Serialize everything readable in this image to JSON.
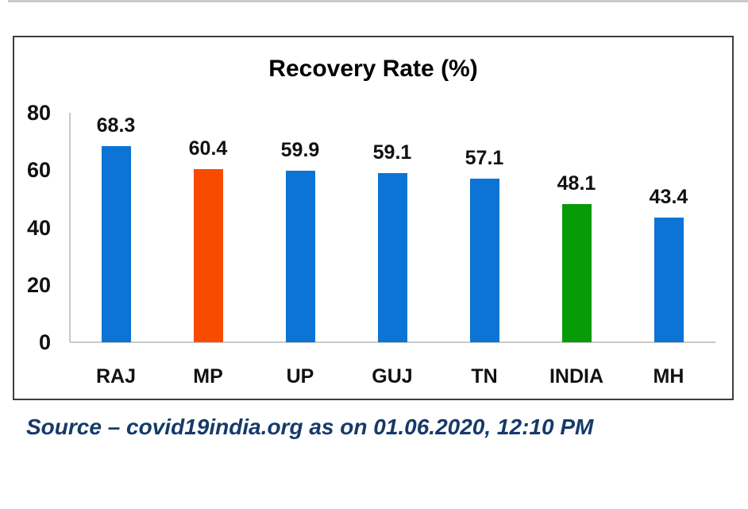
{
  "chart_data": {
    "type": "bar",
    "title": "Recovery Rate (%)",
    "categories": [
      "RAJ",
      "MP",
      "UP",
      "GUJ",
      "TN",
      "INDIA",
      "MH"
    ],
    "values": [
      68.3,
      60.4,
      59.9,
      59.1,
      57.1,
      48.1,
      43.4
    ],
    "bar_colors": [
      "#0b74d4",
      "#f84b00",
      "#0b74d4",
      "#0b74d4",
      "#0b74d4",
      "#089b08",
      "#0b74d4"
    ],
    "xlabel": "",
    "ylabel": "",
    "ylim": [
      0,
      80
    ],
    "yticks": [
      0,
      20,
      40,
      60,
      80
    ],
    "grid": false,
    "legend": false,
    "data_labels": [
      "68.3",
      "60.4",
      "59.9",
      "59.1",
      "57.1",
      "48.1",
      "43.4"
    ]
  },
  "source_note": "Source – covid19india.org as on 01.06.2020, 12:10 PM",
  "colors": {
    "bar_blue": "#0b74d4",
    "bar_orange": "#f84b00",
    "bar_green": "#089b08",
    "source_text": "#163a69",
    "box_border": "#3e3e3e",
    "axis_line": "#c9c9c9",
    "top_rule": "#cbcbcb",
    "label_text": "#111111"
  }
}
